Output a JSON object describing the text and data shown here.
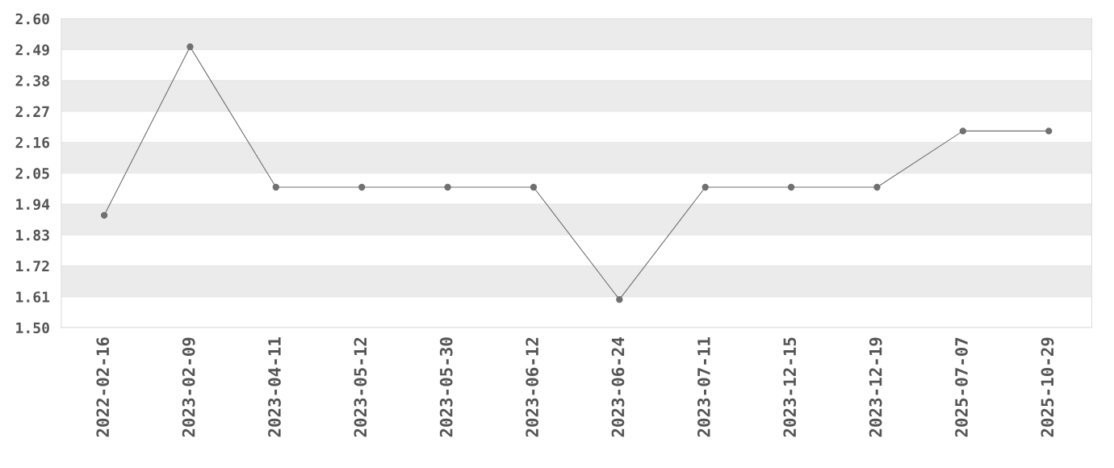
{
  "chart_data": {
    "type": "line",
    "categories": [
      "2022-02-16",
      "2023-02-09",
      "2023-04-11",
      "2023-05-12",
      "2023-05-30",
      "2023-06-12",
      "2023-06-24",
      "2023-07-11",
      "2023-12-15",
      "2023-12-19",
      "2025-07-07",
      "2025-10-29"
    ],
    "series": [
      {
        "color": "#707070",
        "values": [
          1.9,
          2.5,
          2.0,
          2.0,
          2.0,
          2.0,
          1.6,
          2.0,
          2.0,
          2.0,
          2.2,
          2.2
        ]
      }
    ],
    "ylim": [
      1.5,
      2.6
    ],
    "yticks": [
      {
        "value": 1.5,
        "label": "1.50"
      },
      {
        "value": 1.61,
        "label": "1.61"
      },
      {
        "value": 1.72,
        "label": "1.72"
      },
      {
        "value": 1.83,
        "label": "1.83"
      },
      {
        "value": 1.94,
        "label": "1.94"
      },
      {
        "value": 2.05,
        "label": "2.05"
      },
      {
        "value": 2.16,
        "label": "2.16"
      },
      {
        "value": 2.27,
        "label": "2.27"
      },
      {
        "value": 2.38,
        "label": "2.38"
      },
      {
        "value": 2.49,
        "label": "2.49"
      },
      {
        "value": 2.6,
        "label": "2.60"
      }
    ],
    "grid": "y",
    "marker": "circle",
    "line_style": "solid",
    "legend": false
  }
}
